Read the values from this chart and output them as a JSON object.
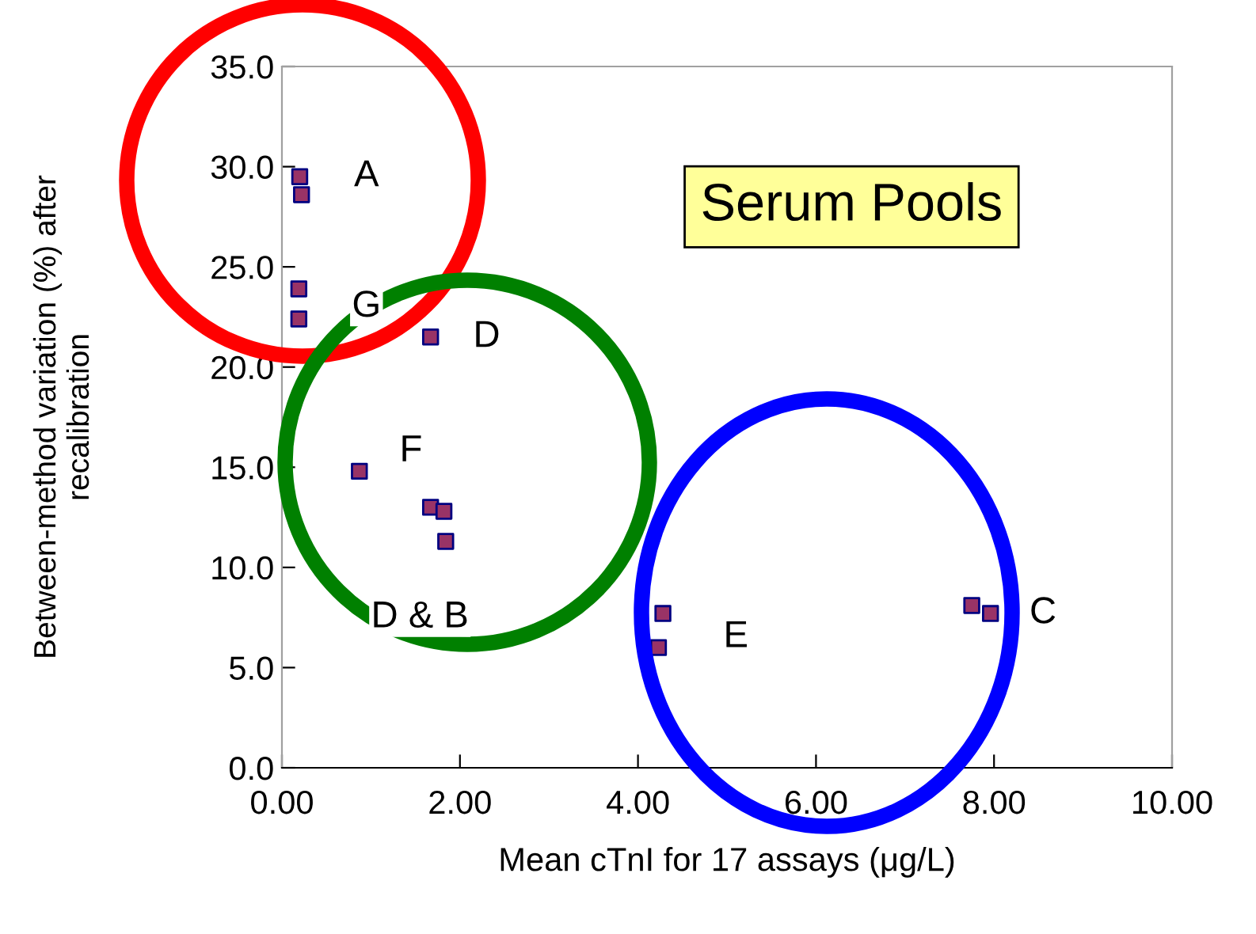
{
  "chart_data": {
    "type": "scatter",
    "title": "Serum Pools",
    "xlabel": "Mean cTnI for 17 assays (μg/L)",
    "ylabel": "Between-method variation (%) after\nrecalibration",
    "x": [
      0.2,
      0.22,
      0.19,
      0.19,
      1.67,
      0.87,
      1.67,
      1.82,
      1.84,
      4.28,
      4.23,
      7.75,
      7.96
    ],
    "values": [
      29.5,
      28.6,
      23.9,
      22.4,
      21.5,
      14.8,
      13.0,
      12.8,
      11.3,
      7.7,
      6.0,
      8.1,
      7.7
    ],
    "color": "#993366",
    "marker": "square",
    "grid": false,
    "legend": false,
    "xlim": [
      0,
      10
    ],
    "xticks": [
      {
        "value": 0,
        "label": "0.00"
      },
      {
        "value": 2,
        "label": "2.00"
      },
      {
        "value": 4,
        "label": "4.00"
      },
      {
        "value": 6,
        "label": "6.00"
      },
      {
        "value": 8,
        "label": "8.00"
      },
      {
        "value": 10,
        "label": "10.00"
      }
    ],
    "ylim": [
      0,
      35
    ],
    "yticks": [
      {
        "value": 0,
        "label": "0.0"
      },
      {
        "value": 5,
        "label": "5.0"
      },
      {
        "value": 10,
        "label": "10.0"
      },
      {
        "value": 15,
        "label": "15.0"
      },
      {
        "value": 20,
        "label": "20.0"
      },
      {
        "value": 25,
        "label": "25.0"
      },
      {
        "value": 30,
        "label": "30.0"
      },
      {
        "value": 35,
        "label": "35.0"
      }
    ],
    "annotations": [
      "A",
      "G",
      "D",
      "F",
      "D & B",
      "E",
      "C"
    ]
  }
}
